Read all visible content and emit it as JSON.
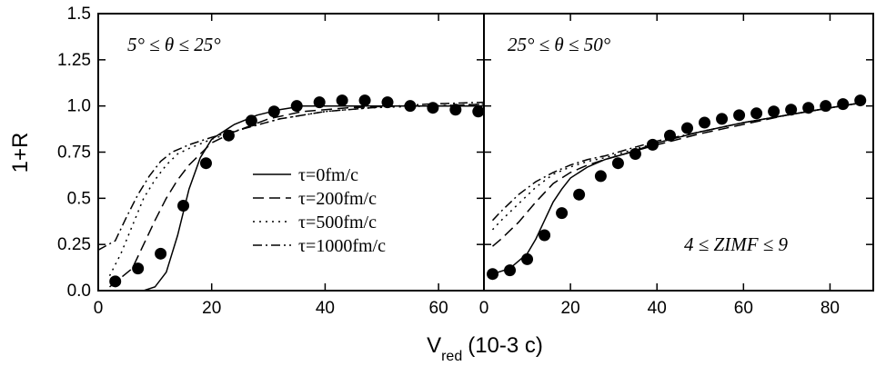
{
  "chart_data": {
    "type": "line",
    "ylabel": "1+R",
    "xlabel": "V",
    "xlabel_sub": "red",
    "xlabel_units": "(10-3 c)",
    "ylim": [
      0,
      1.5
    ],
    "yticks": [
      "0.0",
      "0.25",
      "0.5",
      "0.75",
      "1.0",
      "1.25",
      "1.5"
    ],
    "legend": [
      {
        "name": "τ=0fm/c",
        "style": "solid"
      },
      {
        "name": "τ=200fm/c",
        "style": "dashed"
      },
      {
        "name": "τ=500fm/c",
        "style": "dotted"
      },
      {
        "name": "τ=1000fm/c",
        "style": "dashdot"
      }
    ],
    "panels": [
      {
        "annotation": "5° ≤ θ ≤ 25°",
        "xlim": [
          0,
          68
        ],
        "xticks": [
          "0",
          "20",
          "40",
          "60"
        ],
        "points": {
          "x": [
            3,
            7,
            11,
            15,
            19,
            23,
            27,
            31,
            35,
            39,
            43,
            47,
            51,
            55,
            59,
            63,
            67
          ],
          "y": [
            0.05,
            0.12,
            0.2,
            0.46,
            0.69,
            0.84,
            0.92,
            0.97,
            1.0,
            1.02,
            1.03,
            1.03,
            1.02,
            1.0,
            0.99,
            0.98,
            0.97
          ]
        },
        "series": [
          {
            "name": "τ=0fm/c",
            "x": [
              4,
              8,
              10,
              12,
              14,
              16,
              18,
              20,
              24,
              28,
              32,
              36,
              40,
              48,
              56,
              64,
              68
            ],
            "y": [
              0.0,
              0.0,
              0.02,
              0.1,
              0.3,
              0.55,
              0.72,
              0.82,
              0.9,
              0.95,
              0.98,
              1.0,
              1.0,
              1.0,
              1.0,
              1.0,
              1.0
            ]
          },
          {
            "name": "τ=200fm/c",
            "x": [
              2,
              6,
              8,
              10,
              12,
              14,
              16,
              20,
              24,
              30,
              36,
              44,
              52,
              60,
              68
            ],
            "y": [
              0.02,
              0.12,
              0.25,
              0.38,
              0.5,
              0.6,
              0.68,
              0.8,
              0.86,
              0.93,
              0.97,
              0.99,
              1.0,
              1.0,
              1.01
            ]
          },
          {
            "name": "τ=500fm/c",
            "x": [
              2,
              4,
              6,
              8,
              10,
              12,
              14,
              16,
              20,
              26,
              32,
              40,
              48,
              58,
              68
            ],
            "y": [
              0.08,
              0.2,
              0.35,
              0.5,
              0.6,
              0.68,
              0.74,
              0.77,
              0.82,
              0.88,
              0.93,
              0.97,
              0.99,
              1.0,
              1.01
            ]
          },
          {
            "name": "τ=1000fm/c",
            "x": [
              0,
              3,
              5,
              7,
              9,
              11,
              13,
              16,
              20,
              26,
              32,
              40,
              48,
              58,
              68
            ],
            "y": [
              0.22,
              0.27,
              0.4,
              0.52,
              0.62,
              0.7,
              0.75,
              0.79,
              0.83,
              0.88,
              0.93,
              0.97,
              0.99,
              1.01,
              1.02
            ]
          }
        ]
      },
      {
        "annotation": "25° ≤ θ ≤ 50°",
        "annotation2": "4 ≤ ZIMF ≤ 9",
        "xlim": [
          0,
          90
        ],
        "xticks": [
          "0",
          "20",
          "40",
          "60",
          "80"
        ],
        "points": {
          "x": [
            2,
            6,
            10,
            14,
            18,
            22,
            27,
            31,
            35,
            39,
            43,
            47,
            51,
            55,
            59,
            63,
            67,
            71,
            75,
            79,
            83,
            87
          ],
          "y": [
            0.09,
            0.11,
            0.17,
            0.3,
            0.42,
            0.52,
            0.62,
            0.69,
            0.74,
            0.79,
            0.84,
            0.88,
            0.91,
            0.93,
            0.95,
            0.96,
            0.97,
            0.98,
            0.99,
            1.0,
            1.01,
            1.03
          ]
        },
        "series": [
          {
            "name": "τ=0fm/c",
            "x": [
              2,
              6,
              10,
              12,
              14,
              16,
              18,
              20,
              24,
              28,
              34,
              40,
              50,
              60,
              70,
              80,
              88
            ],
            "y": [
              0.09,
              0.12,
              0.2,
              0.28,
              0.38,
              0.48,
              0.55,
              0.61,
              0.67,
              0.71,
              0.75,
              0.8,
              0.86,
              0.91,
              0.95,
              0.99,
              1.02
            ]
          },
          {
            "name": "τ=200fm/c",
            "x": [
              2,
              4,
              8,
              12,
              16,
              20,
              24,
              28,
              34,
              40,
              50,
              60,
              70,
              80,
              88
            ],
            "y": [
              0.24,
              0.28,
              0.37,
              0.48,
              0.58,
              0.64,
              0.68,
              0.71,
              0.75,
              0.79,
              0.85,
              0.9,
              0.95,
              0.99,
              1.02
            ]
          },
          {
            "name": "τ=500fm/c",
            "x": [
              2,
              4,
              8,
              12,
              16,
              20,
              24,
              28,
              34,
              40,
              50,
              60,
              70,
              80,
              88
            ],
            "y": [
              0.33,
              0.38,
              0.47,
              0.56,
              0.63,
              0.67,
              0.7,
              0.72,
              0.76,
              0.8,
              0.86,
              0.91,
              0.95,
              0.99,
              1.02
            ]
          },
          {
            "name": "τ=1000fm/c",
            "x": [
              2,
              4,
              8,
              12,
              16,
              20,
              24,
              28,
              34,
              40,
              50,
              60,
              70,
              80,
              88
            ],
            "y": [
              0.38,
              0.43,
              0.52,
              0.59,
              0.64,
              0.68,
              0.71,
              0.73,
              0.77,
              0.81,
              0.86,
              0.91,
              0.95,
              0.99,
              1.02
            ]
          }
        ]
      }
    ]
  }
}
